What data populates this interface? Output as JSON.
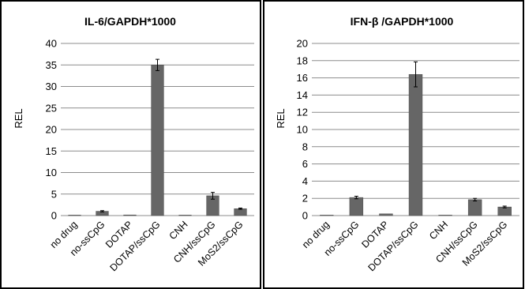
{
  "chart_data": [
    {
      "type": "bar",
      "title": "IL-6/GAPDH*1000",
      "ylabel": "REL",
      "xlabel": "",
      "categories": [
        "no drug",
        "no-ssCpG",
        "DOTAP",
        "DOTAP/ssCpG",
        "CNH",
        "CNH/ssCpG",
        "MoS2/ssCpG"
      ],
      "values": [
        0,
        1.0,
        0.15,
        35,
        0,
        4.6,
        1.6
      ],
      "errors": [
        0,
        0.15,
        0.05,
        1.3,
        0,
        0.8,
        0.15
      ],
      "ylim": [
        0,
        40
      ],
      "yticks": [
        0,
        5,
        10,
        15,
        20,
        25,
        30,
        35,
        40
      ],
      "grid": true,
      "legend": "none",
      "bar_color": "#666666"
    },
    {
      "type": "bar",
      "title": "IFN-β /GAPDH*1000",
      "ylabel": "REL",
      "xlabel": "",
      "categories": [
        "no drug",
        "no-ssCpG",
        "DOTAP",
        "DOTAP/ssCpG",
        "CNH",
        "CNH/ssCpG",
        "MoS2/ssCpG"
      ],
      "values": [
        0.05,
        2.1,
        0.2,
        16.4,
        0.05,
        1.85,
        1.0
      ],
      "errors": [
        0.02,
        0.15,
        0.05,
        1.45,
        0.02,
        0.15,
        0.1
      ],
      "ylim": [
        0,
        20
      ],
      "yticks": [
        0,
        2,
        4,
        6,
        8,
        10,
        12,
        14,
        16,
        18,
        20
      ],
      "grid": true,
      "legend": "none",
      "bar_color": "#666666"
    }
  ]
}
